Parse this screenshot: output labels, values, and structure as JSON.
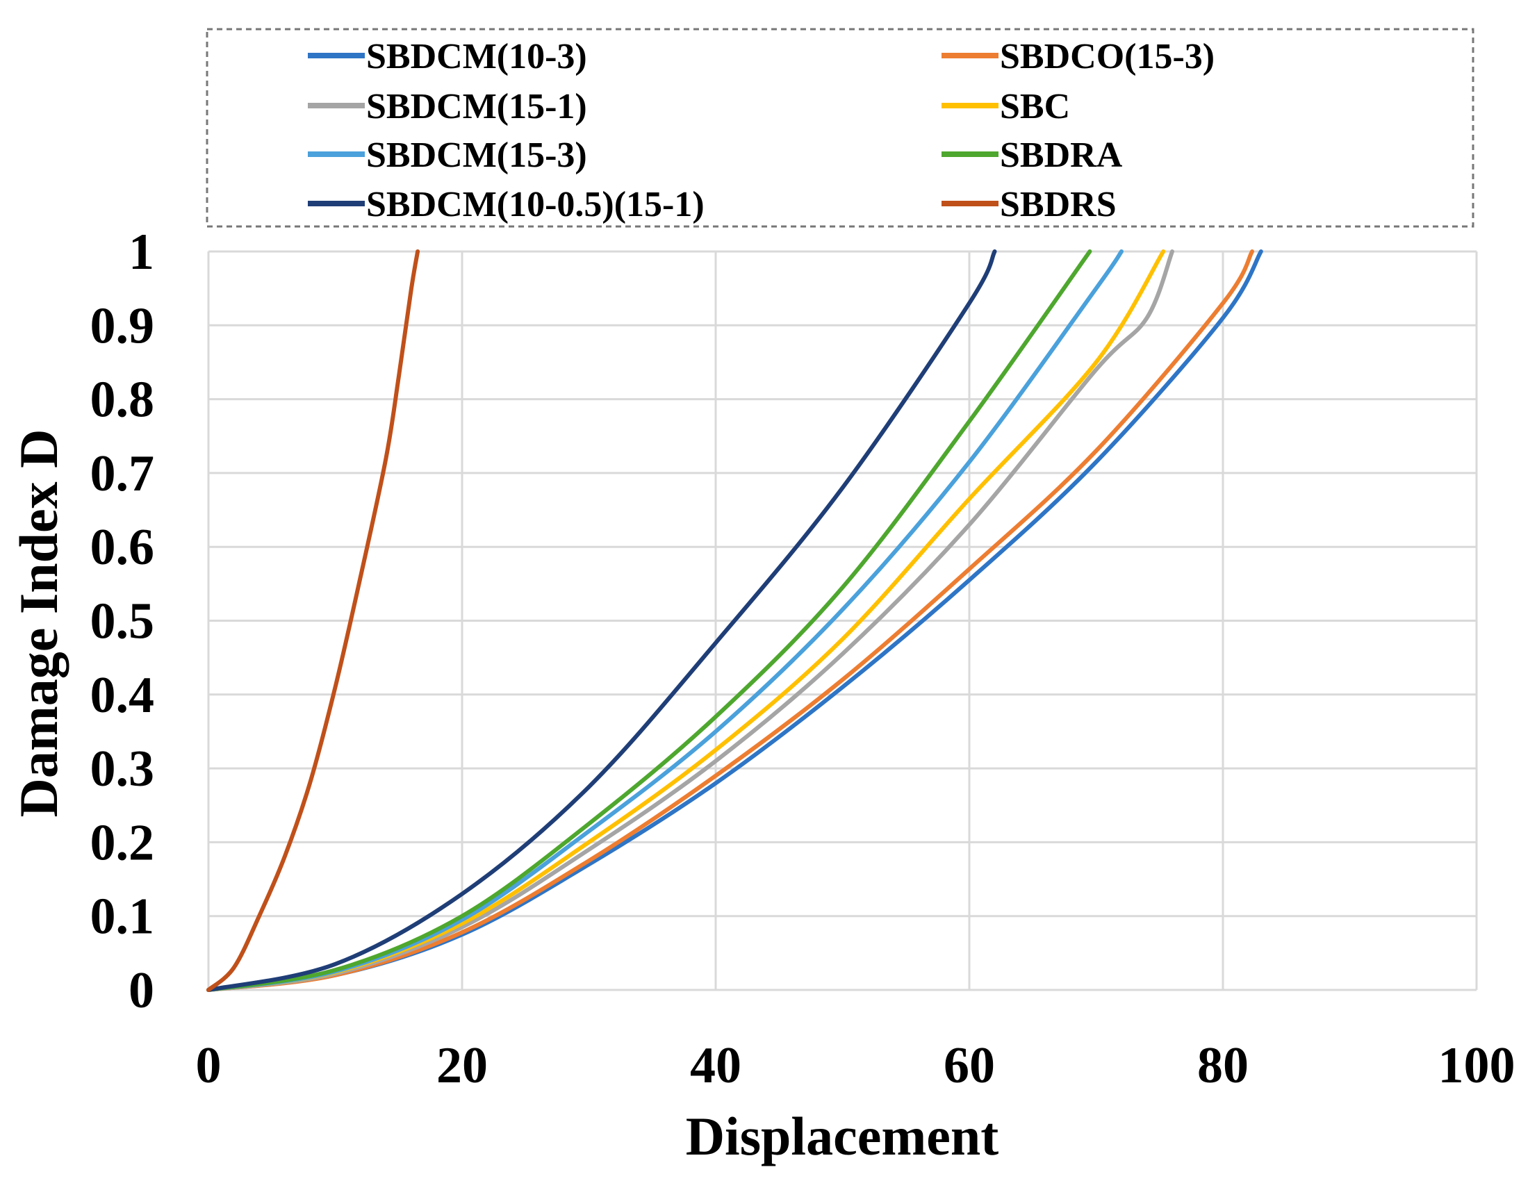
{
  "chart_data": {
    "type": "line",
    "title": "",
    "xlabel": "Displacement",
    "ylabel": "Damage Index D",
    "xlim": [
      0,
      100
    ],
    "ylim": [
      0,
      1
    ],
    "xticks": [
      "0",
      "20",
      "40",
      "60",
      "80",
      "100"
    ],
    "yticks": [
      "0",
      "0.1",
      "0.2",
      "0.3",
      "0.4",
      "0.5",
      "0.6",
      "0.7",
      "0.8",
      "0.9",
      "1"
    ],
    "grid": true,
    "legend_position": "top",
    "series": [
      {
        "name": "SBDCM(10-3)",
        "color": "#2E75C6",
        "x": [
          0,
          10,
          20,
          30,
          40,
          50,
          60,
          70,
          80,
          83
        ],
        "y": [
          0,
          0.02,
          0.075,
          0.17,
          0.28,
          0.41,
          0.555,
          0.715,
          0.91,
          1.0
        ]
      },
      {
        "name": "SBDCO(15-3)",
        "color": "#ED7D31",
        "x": [
          0,
          10,
          20,
          30,
          40,
          50,
          60,
          70,
          80,
          82.3
        ],
        "y": [
          0,
          0.02,
          0.078,
          0.175,
          0.29,
          0.42,
          0.57,
          0.73,
          0.93,
          1.0
        ]
      },
      {
        "name": "SBDCM(15-1)",
        "color": "#A5A5A5",
        "x": [
          0,
          10,
          20,
          30,
          40,
          50,
          60,
          70,
          74,
          76
        ],
        "y": [
          0,
          0.022,
          0.085,
          0.19,
          0.31,
          0.455,
          0.63,
          0.84,
          0.91,
          1.0
        ]
      },
      {
        "name": "SBC",
        "color": "#FFC000",
        "x": [
          0,
          10,
          20,
          30,
          40,
          50,
          60,
          70,
          75.3
        ],
        "y": [
          0,
          0.024,
          0.09,
          0.2,
          0.325,
          0.475,
          0.665,
          0.85,
          1.0
        ]
      },
      {
        "name": "SBDCM(15-3)",
        "color": "#4AA1DB",
        "x": [
          0,
          10,
          20,
          30,
          40,
          50,
          60,
          70,
          72
        ],
        "y": [
          0,
          0.025,
          0.095,
          0.215,
          0.35,
          0.515,
          0.715,
          0.95,
          1.0
        ]
      },
      {
        "name": "SBDRA",
        "color": "#4EA72E",
        "x": [
          0,
          10,
          20,
          30,
          40,
          50,
          60,
          69.5
        ],
        "y": [
          0,
          0.027,
          0.1,
          0.225,
          0.37,
          0.545,
          0.77,
          1.0
        ]
      },
      {
        "name": "SBDCM(10-0.5)(15-1)",
        "color": "#1F3E77",
        "x": [
          0,
          10,
          20,
          30,
          40,
          50,
          60,
          62
        ],
        "y": [
          0,
          0.035,
          0.13,
          0.275,
          0.47,
          0.68,
          0.93,
          1.0
        ]
      },
      {
        "name": "SBDRS",
        "color": "#C0501A",
        "x": [
          0,
          2,
          4,
          6,
          8,
          10,
          12,
          14,
          15,
          16,
          16.5
        ],
        "y": [
          0,
          0.03,
          0.1,
          0.18,
          0.28,
          0.41,
          0.56,
          0.72,
          0.83,
          0.95,
          1.0
        ]
      }
    ]
  }
}
